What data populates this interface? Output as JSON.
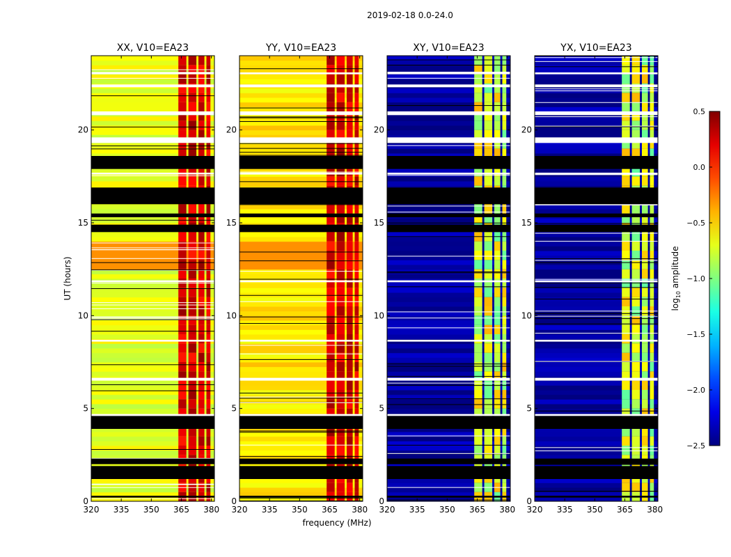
{
  "suptitle": "2019-02-18 0.0-24.0",
  "xlabel": "frequency (MHz)",
  "ylabel": "UT (hours)",
  "chart_data": {
    "type": "heatmap",
    "xlim": [
      320,
      381.5
    ],
    "ylim": [
      0,
      24
    ],
    "xticks": [
      320,
      335,
      350,
      365,
      380
    ],
    "yticks": [
      0,
      5,
      10,
      15,
      20
    ],
    "colorbar": {
      "label": "log10 amplitude",
      "label_base": "log",
      "label_sub": "10",
      "label_rest": " amplitude",
      "range": [
        -2.5,
        0.5
      ],
      "ticks": [
        "0.5",
        "0.0",
        "−0.5",
        "−1.0",
        "−1.5",
        "−2.0",
        "−2.5"
      ],
      "colormap": "jet"
    },
    "panels": [
      {
        "title": "XX, V10=EA23",
        "kind": "auto",
        "base_level": -0.7
      },
      {
        "title": "YY, V10=EA23",
        "kind": "auto",
        "base_level": -0.55
      },
      {
        "title": "XY, V10=EA23",
        "kind": "cross",
        "base_level": -2.4
      },
      {
        "title": "YX, V10=EA23",
        "kind": "cross",
        "base_level": -2.4
      }
    ],
    "rfi_channels_mhz": [
      [
        363.5,
        367.5
      ],
      [
        368.5,
        372.5
      ],
      [
        373.5,
        376.5
      ],
      [
        377.5,
        379.5
      ]
    ],
    "flagged_black_hours": [
      [
        0.2,
        0.3
      ],
      [
        1.2,
        1.9
      ],
      [
        2.0,
        2.3
      ],
      [
        3.9,
        4.6
      ],
      [
        16.0,
        16.9
      ],
      [
        17.9,
        18.6
      ],
      [
        14.5,
        14.9
      ],
      [
        15.3,
        15.5
      ]
    ],
    "flagged_white_hours": [
      [
        4.6,
        4.7
      ],
      [
        6.5,
        6.65
      ],
      [
        8.6,
        8.7
      ],
      [
        11.8,
        11.9
      ],
      [
        19.3,
        19.6
      ],
      [
        20.8,
        21.0
      ],
      [
        22.3,
        22.45
      ],
      [
        23.0,
        23.1
      ],
      [
        17.6,
        17.7
      ]
    ]
  }
}
